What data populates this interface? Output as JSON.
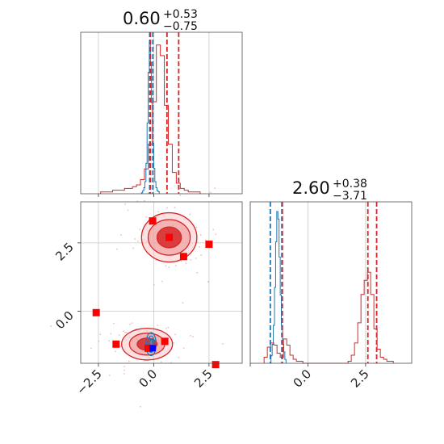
{
  "chart_data": {
    "type": "corner",
    "parameters": 2,
    "titles": [
      {
        "median": "0.60",
        "plus": "+0.53",
        "minus": "−0.75"
      },
      {
        "median": "2.60",
        "plus": "+0.38",
        "minus": "−3.71"
      }
    ],
    "tick_labels": [
      "−2.5",
      "0.0",
      "2.5"
    ],
    "tick_values": [
      -2.5,
      0.0,
      2.5
    ],
    "axes": {
      "x0_range": [
        -3.3,
        4.0
      ],
      "x1_range": [
        -2.5,
        4.5
      ],
      "y1_range": [
        -1.9,
        4.0
      ]
    },
    "grid": true,
    "colors": {
      "series_red": "#d62728",
      "series_blue": "#1f77b4",
      "marker": "#ff0000",
      "marker_blue": "#0000ff"
    },
    "series": [
      {
        "name": "red",
        "color": "#d62728",
        "quantiles_param0": [
          -0.15,
          0.6,
          1.13
        ],
        "quantiles_param1": [
          -1.11,
          2.6,
          2.98
        ],
        "hist_param0": {
          "start": -2.4,
          "step": 0.18,
          "counts": [
            1,
            1,
            1,
            2,
            2,
            2,
            3,
            3,
            4,
            5,
            8,
            14,
            28,
            52,
            84,
            78,
            50,
            28,
            12,
            6,
            3,
            2,
            1,
            1,
            1
          ]
        },
        "hist_param1": {
          "start": -1.9,
          "step": 0.14,
          "counts": [
            3,
            8,
            10,
            9,
            5,
            3,
            12,
            9,
            4,
            2,
            1,
            1,
            0,
            0,
            0,
            0,
            0,
            0,
            0,
            0,
            0,
            0,
            0,
            0,
            0,
            0,
            1,
            4,
            10,
            20,
            34,
            41,
            45,
            34,
            17,
            7,
            3,
            2,
            1,
            1
          ]
        },
        "contours_2d": [
          {
            "center": [
              0.7,
              2.7
            ],
            "rx": [
              0.55,
              0.95,
              1.25
            ],
            "ry": [
              0.38,
              0.65,
              0.9
            ]
          },
          {
            "center": [
              -0.3,
              -1.2
            ],
            "rx": [
              0.45,
              0.8,
              1.15
            ],
            "ry": [
              0.22,
              0.4,
              0.58
            ]
          }
        ]
      },
      {
        "name": "blue",
        "color": "#1f77b4",
        "quantiles_param0": [
          -0.18,
          -0.04
        ],
        "quantiles_param1": [
          -1.63,
          -1.13
        ],
        "hist_param0": {
          "start": -0.55,
          "step": 0.05,
          "counts": [
            1,
            3,
            6,
            12,
            30,
            70,
            120,
            150,
            130,
            90,
            50,
            25,
            12,
            6,
            3,
            2
          ]
        },
        "hist_param1": {
          "start": -1.6,
          "step": 0.05,
          "counts": [
            2,
            5,
            10,
            20,
            32,
            40,
            38,
            28,
            18,
            10,
            5,
            3,
            1
          ]
        },
        "contours_2d": [
          {
            "center": [
              -0.12,
              -1.2
            ],
            "rx": [
              0.08,
              0.15,
              0.23
            ],
            "ry": [
              0.18,
              0.3,
              0.42
            ]
          }
        ]
      }
    ],
    "markers": [
      [
        -0.05,
        3.3
      ],
      [
        0.7,
        2.7
      ],
      [
        1.35,
        2.0
      ],
      [
        2.5,
        2.45
      ],
      [
        -2.6,
        -0.05
      ],
      [
        -1.7,
        -1.2
      ],
      [
        0.5,
        -1.1
      ],
      [
        2.8,
        -1.95
      ],
      [
        -0.25,
        -1.35
      ]
    ],
    "marker_blue": [
      -0.05,
      -1.35
    ]
  }
}
